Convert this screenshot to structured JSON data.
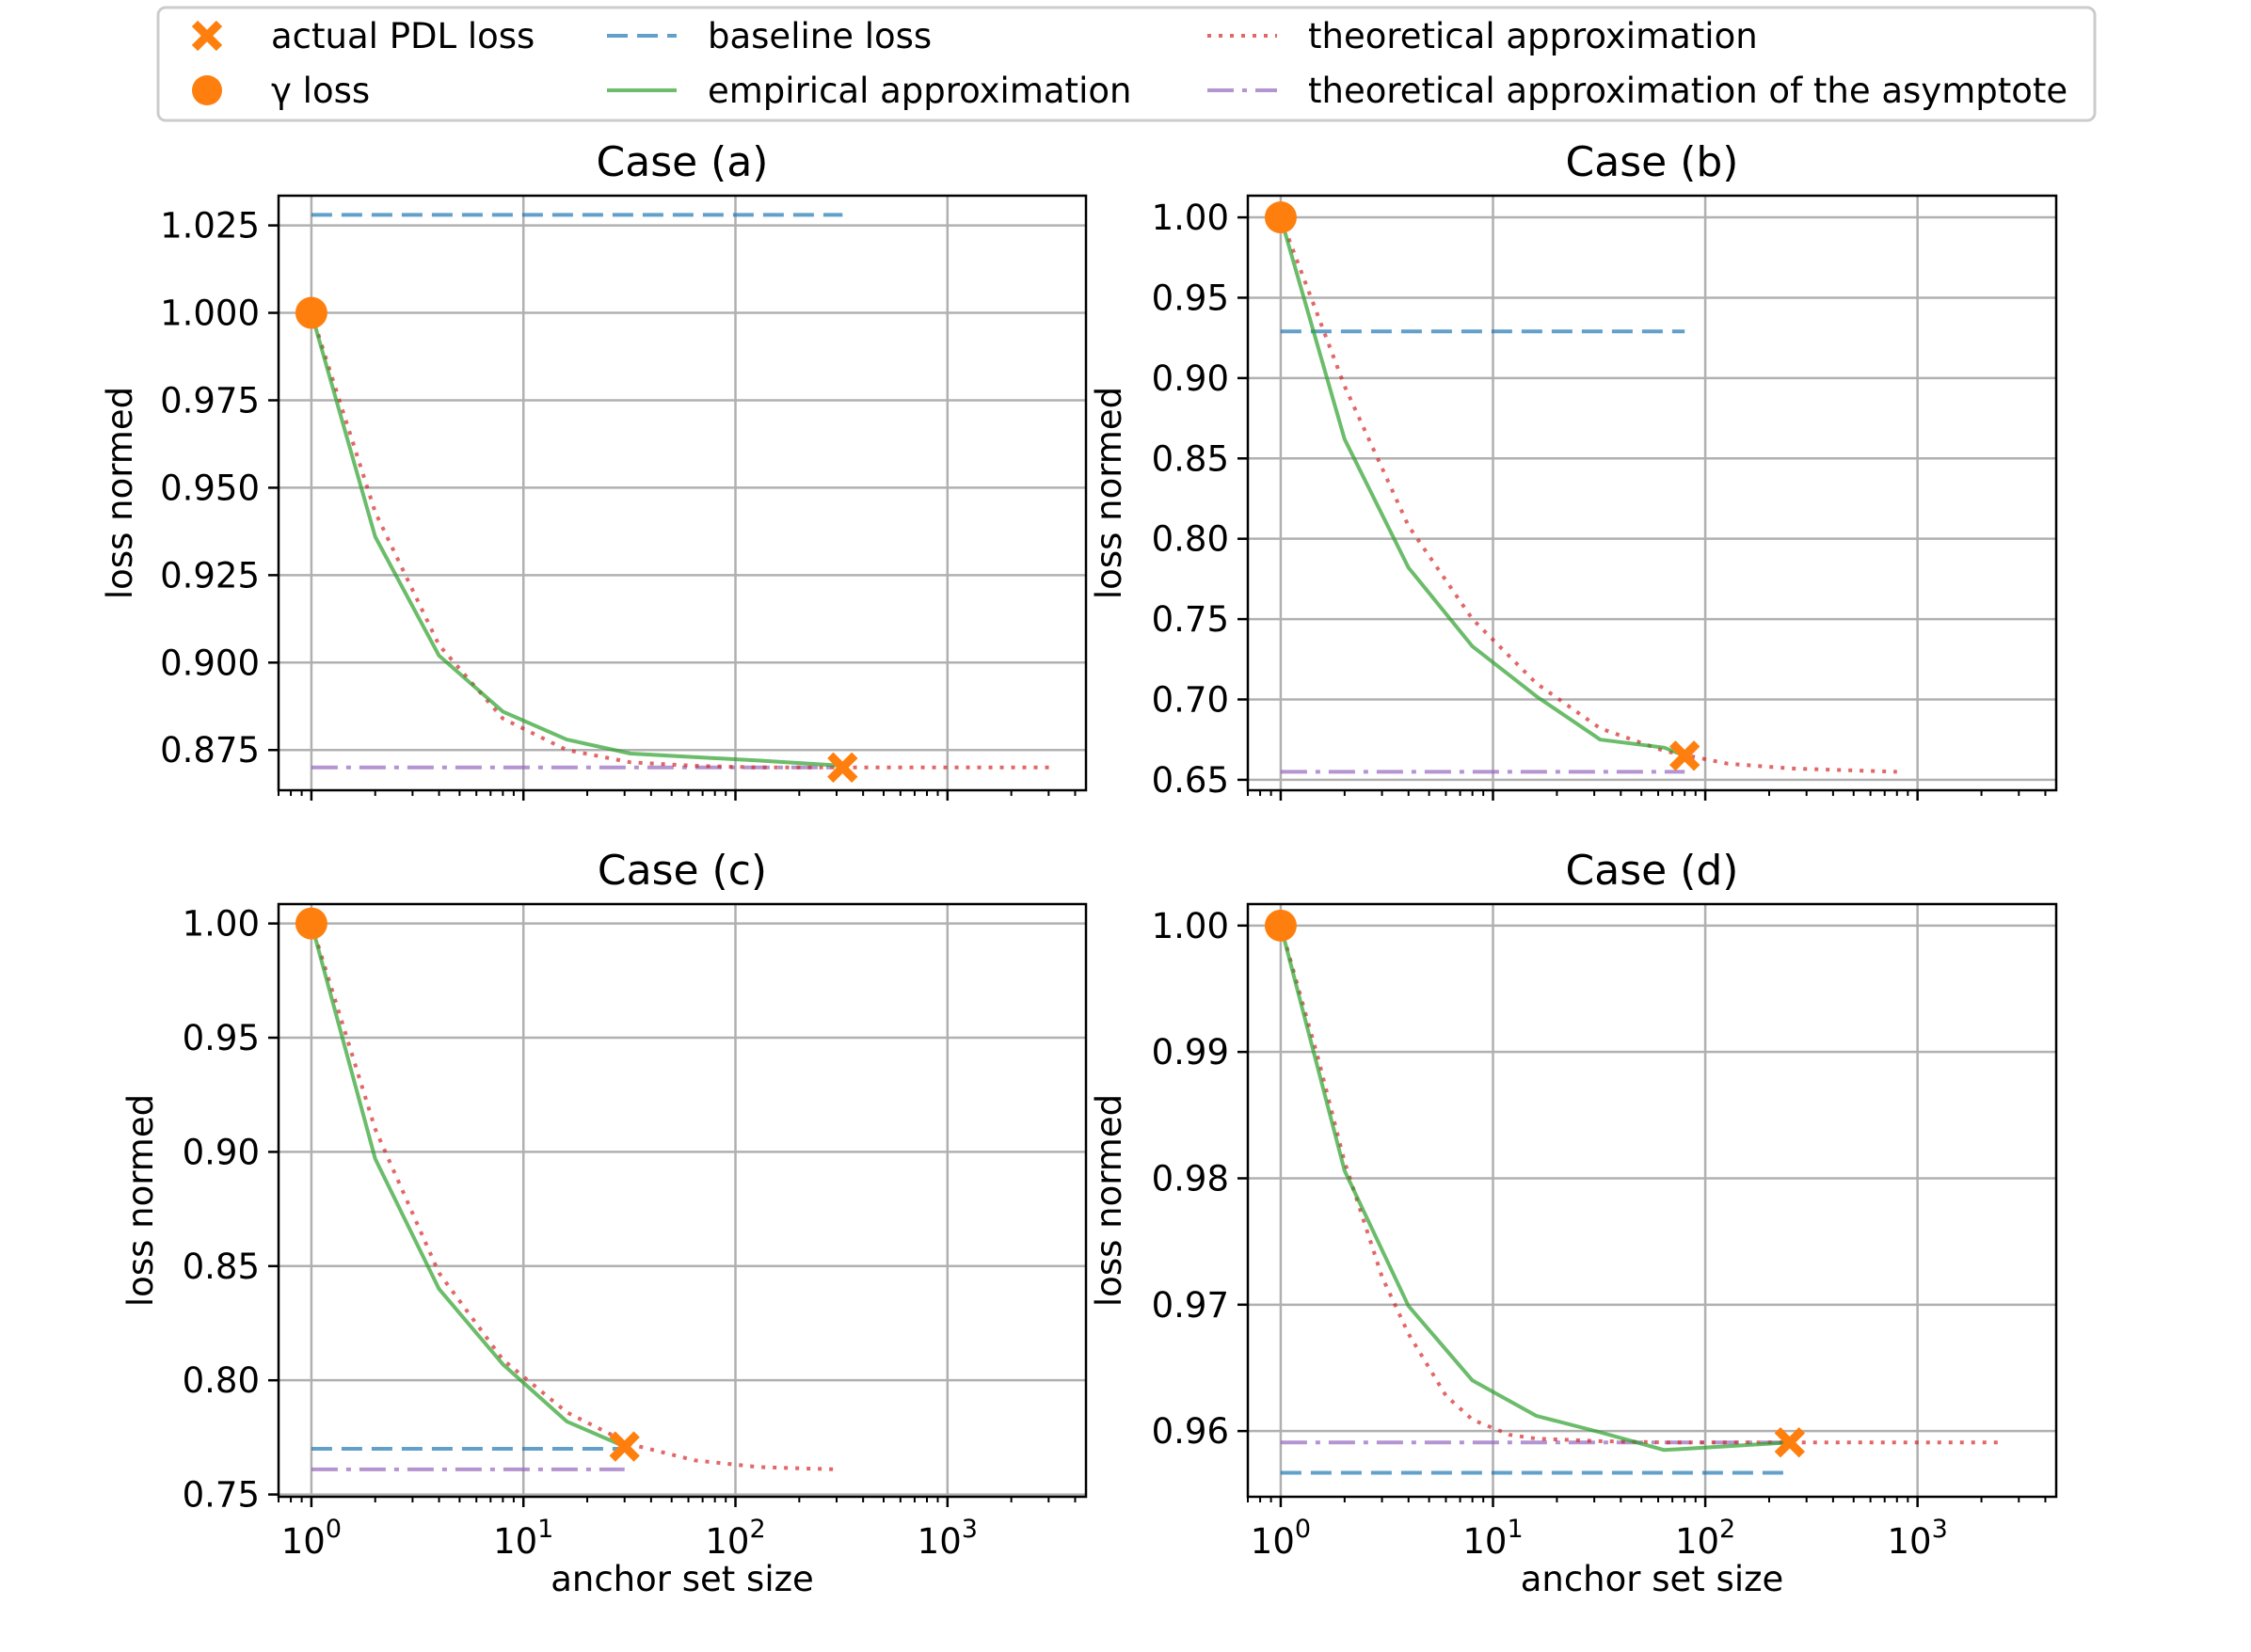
{
  "legend": {
    "entries": [
      {
        "key": "actual",
        "label": "actual PDL loss",
        "marker": "x-marker",
        "color": "#ff7f0e"
      },
      {
        "key": "gamma",
        "label": "γ loss",
        "marker": "circle-marker",
        "color": "#ff7f0e"
      },
      {
        "key": "baseline",
        "label": "baseline loss",
        "style": "dashed",
        "color": "#1f77b4"
      },
      {
        "key": "empirical",
        "label": "empirical approximation",
        "style": "solid",
        "color": "#2ca02c"
      },
      {
        "key": "theoretical",
        "label": "theoretical approximation",
        "style": "dotted",
        "color": "#d62728"
      },
      {
        "key": "asymptote",
        "label": "theoretical approximation of the asymptote",
        "style": "dashdot",
        "color": "#9467bd"
      }
    ]
  },
  "chart_data": [
    {
      "type": "line",
      "title": "Case (a)",
      "xlabel": "",
      "ylabel": "loss normed",
      "xscale": "log",
      "xlim": [
        0.7,
        4500
      ],
      "ylim": [
        0.8635,
        1.0335
      ],
      "yticks": [
        "0.875",
        "0.900",
        "0.925",
        "0.950",
        "0.975",
        "1.000",
        "1.025"
      ],
      "xticks": [],
      "grid": true,
      "baseline": {
        "x": [
          1,
          320
        ],
        "y": 1.028
      },
      "asymptote": {
        "x": [
          1,
          320
        ],
        "y": 0.87
      },
      "empirical": {
        "x": [
          1,
          2,
          4,
          8,
          16,
          32,
          64,
          128,
          320
        ],
        "y": [
          1.0,
          0.936,
          0.902,
          0.886,
          0.878,
          0.874,
          0.873,
          0.872,
          0.8705
        ]
      },
      "theoretical": {
        "x": [
          1,
          2,
          4,
          8,
          16,
          32,
          64,
          128,
          320,
          1000,
          3200
        ],
        "y": [
          1.0,
          0.943,
          0.905,
          0.884,
          0.875,
          0.8715,
          0.8705,
          0.87,
          0.87,
          0.87,
          0.87
        ]
      },
      "gamma_loss": {
        "x": 1,
        "y": 1.0
      },
      "actual_pdl_loss": {
        "x": 320,
        "y": 0.87
      }
    },
    {
      "type": "line",
      "title": "Case (b)",
      "xlabel": "",
      "ylabel": "loss normed",
      "xscale": "log",
      "xlim": [
        0.7,
        4500
      ],
      "ylim": [
        0.6435,
        1.0135
      ],
      "yticks": [
        "0.65",
        "0.70",
        "0.75",
        "0.80",
        "0.85",
        "0.90",
        "0.95",
        "1.00"
      ],
      "xticks": [],
      "grid": true,
      "baseline": {
        "x": [
          1,
          80
        ],
        "y": 0.929
      },
      "asymptote": {
        "x": [
          1,
          80
        ],
        "y": 0.655
      },
      "empirical": {
        "x": [
          1,
          2,
          4,
          8,
          16,
          32,
          64,
          80
        ],
        "y": [
          1.0,
          0.862,
          0.782,
          0.733,
          0.702,
          0.675,
          0.67,
          0.665
        ]
      },
      "theoretical": {
        "x": [
          1,
          2,
          4,
          8,
          16,
          32,
          64,
          128,
          256,
          800
        ],
        "y": [
          1.0,
          0.895,
          0.808,
          0.75,
          0.71,
          0.682,
          0.668,
          0.66,
          0.657,
          0.655
        ]
      },
      "gamma_loss": {
        "x": 1,
        "y": 1.0
      },
      "actual_pdl_loss": {
        "x": 80,
        "y": 0.665
      }
    },
    {
      "type": "line",
      "title": "Case (c)",
      "xlabel": "anchor set size",
      "ylabel": "loss normed",
      "xscale": "log",
      "xlim": [
        0.7,
        4500
      ],
      "ylim": [
        0.749,
        1.0085
      ],
      "yticks": [
        "0.75",
        "0.80",
        "0.85",
        "0.90",
        "0.95",
        "1.00"
      ],
      "xticks": [
        "10^0",
        "10^1",
        "10^2",
        "10^3"
      ],
      "grid": true,
      "baseline": {
        "x": [
          1,
          30
        ],
        "y": 0.77
      },
      "asymptote": {
        "x": [
          1,
          30
        ],
        "y": 0.761
      },
      "empirical": {
        "x": [
          1,
          2,
          4,
          8,
          16,
          30
        ],
        "y": [
          1.0,
          0.897,
          0.84,
          0.807,
          0.782,
          0.771
        ]
      },
      "theoretical": {
        "x": [
          1,
          2,
          4,
          8,
          16,
          32,
          64,
          128,
          300
        ],
        "y": [
          1.0,
          0.91,
          0.847,
          0.809,
          0.786,
          0.772,
          0.765,
          0.762,
          0.761
        ]
      },
      "gamma_loss": {
        "x": 1,
        "y": 1.0
      },
      "actual_pdl_loss": {
        "x": 30,
        "y": 0.771
      }
    },
    {
      "type": "line",
      "title": "Case (d)",
      "xlabel": "anchor set size",
      "ylabel": "loss normed",
      "xscale": "log",
      "xlim": [
        0.7,
        4500
      ],
      "ylim": [
        0.9548,
        1.0017
      ],
      "yticks": [
        "0.96",
        "0.97",
        "0.98",
        "0.99",
        "1.00"
      ],
      "xticks": [
        "10^0",
        "10^1",
        "10^2",
        "10^3"
      ],
      "grid": true,
      "baseline": {
        "x": [
          1,
          250
        ],
        "y": 0.9567
      },
      "asymptote": {
        "x": [
          1,
          250
        ],
        "y": 0.9591
      },
      "empirical": {
        "x": [
          1,
          2,
          4,
          8,
          16,
          32,
          64,
          128,
          250
        ],
        "y": [
          1.0,
          0.9806,
          0.9699,
          0.964,
          0.9612,
          0.9599,
          0.9585,
          0.9588,
          0.9591
        ]
      },
      "theoretical": {
        "x": [
          1,
          1.5,
          2,
          3,
          4,
          6,
          8,
          12,
          16,
          32,
          64,
          128,
          250,
          800,
          2500
        ],
        "y": [
          1.0,
          0.9895,
          0.9813,
          0.9722,
          0.9677,
          0.9628,
          0.9609,
          0.9597,
          0.9594,
          0.9592,
          0.9591,
          0.9591,
          0.9591,
          0.9591,
          0.9591
        ]
      },
      "gamma_loss": {
        "x": 1,
        "y": 1.0
      },
      "actual_pdl_loss": {
        "x": 250,
        "y": 0.9591
      }
    }
  ]
}
